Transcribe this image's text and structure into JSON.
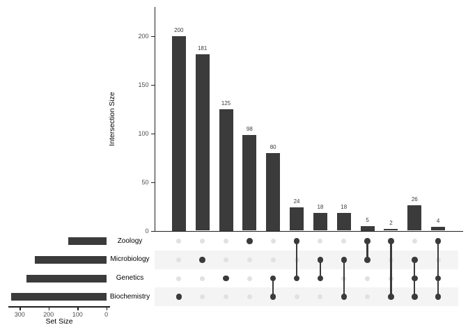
{
  "colors": {
    "bar": "#3b3b3b",
    "dot_active": "#3b3b3b",
    "dot_inactive": "#e1e1e1",
    "stripe": "#f4f4f4",
    "axis_line": "#1f1f1f",
    "tick_text": "#4d4d4d",
    "value_text": "#3a3a3a",
    "background": "#ffffff"
  },
  "chart_data": {
    "type": "upset",
    "intersection_bars": {
      "type": "bar",
      "title": "",
      "xlabel": "",
      "ylabel": "Intersection Size",
      "yticks": [
        0,
        50,
        100,
        150,
        200
      ],
      "ylim": [
        0,
        230
      ],
      "grid": false,
      "legend": "none",
      "values": [
        200,
        181,
        125,
        98,
        80,
        24,
        18,
        18,
        5,
        2,
        26,
        4
      ],
      "memberships": [
        [
          "Biochemistry"
        ],
        [
          "Microbiology"
        ],
        [
          "Genetics"
        ],
        [
          "Zoology"
        ],
        [
          "Genetics",
          "Biochemistry"
        ],
        [
          "Zoology",
          "Genetics"
        ],
        [
          "Microbiology",
          "Genetics"
        ],
        [
          "Microbiology",
          "Biochemistry"
        ],
        [
          "Zoology",
          "Microbiology"
        ],
        [
          "Zoology",
          "Biochemistry"
        ],
        [
          "Microbiology",
          "Genetics",
          "Biochemistry"
        ],
        [
          "Zoology",
          "Genetics",
          "Biochemistry"
        ]
      ]
    },
    "set_sizes": {
      "type": "bar",
      "orientation": "horizontal",
      "xlabel": "Set Size",
      "xticks": [
        300,
        200,
        100,
        0
      ],
      "xlim": [
        345,
        0
      ],
      "categories": [
        "Zoology",
        "Microbiology",
        "Genetics",
        "Biochemistry"
      ],
      "values": [
        133,
        248,
        277,
        330
      ]
    },
    "matrix_rows": [
      "Zoology",
      "Microbiology",
      "Genetics",
      "Biochemistry"
    ]
  }
}
